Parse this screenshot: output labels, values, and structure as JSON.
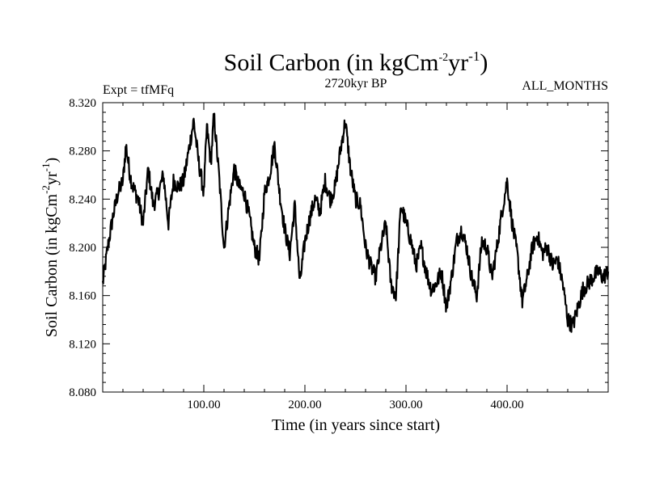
{
  "chart_data": {
    "type": "line",
    "title": {
      "prefix": "Soil Carbon (in kgCm",
      "sup1": "-2",
      "mid": "yr",
      "sup2": "-1",
      "suffix": ")"
    },
    "subtitle": "2720kyr BP",
    "left_label": "Expt = tfMFq",
    "right_label": "ALL_MONTHS",
    "xlabel": "Time (in years since start)",
    "ylabel": {
      "prefix": "Soil Carbon (in kgCm",
      "sup1": "-2",
      "mid": "yr",
      "sup2": "-1",
      "suffix": ")"
    },
    "xlim": [
      0,
      500
    ],
    "ylim": [
      8.08,
      8.32
    ],
    "xticks": [
      100,
      200,
      300,
      400
    ],
    "xtick_labels": [
      "100.00",
      "200.00",
      "300.00",
      "400.00"
    ],
    "yticks": [
      8.08,
      8.12,
      8.16,
      8.2,
      8.24,
      8.28,
      8.32
    ],
    "ytick_labels": [
      "8.080",
      "8.120",
      "8.160",
      "8.200",
      "8.240",
      "8.280",
      "8.320"
    ],
    "x_minor_step": 20,
    "y_minor_step": 0.008,
    "series": [
      {
        "name": "Soil Carbon",
        "color": "#000000",
        "x": [
          0,
          5,
          10,
          15,
          20,
          23,
          27,
          30,
          35,
          40,
          45,
          50,
          55,
          60,
          65,
          70,
          75,
          80,
          85,
          90,
          95,
          100,
          103,
          107,
          110,
          115,
          120,
          125,
          130,
          135,
          140,
          145,
          150,
          155,
          160,
          165,
          170,
          175,
          180,
          185,
          190,
          195,
          200,
          205,
          210,
          215,
          220,
          225,
          230,
          235,
          240,
          245,
          250,
          255,
          260,
          265,
          270,
          275,
          280,
          285,
          290,
          295,
          300,
          305,
          310,
          315,
          320,
          325,
          330,
          335,
          340,
          345,
          350,
          355,
          360,
          365,
          370,
          375,
          380,
          385,
          390,
          395,
          400,
          405,
          410,
          415,
          420,
          425,
          430,
          435,
          440,
          445,
          450,
          455,
          460,
          465,
          470,
          475,
          480,
          485,
          490,
          495,
          500
        ],
        "y": [
          8.17,
          8.2,
          8.225,
          8.245,
          8.255,
          8.285,
          8.26,
          8.25,
          8.24,
          8.22,
          8.265,
          8.235,
          8.245,
          8.26,
          8.22,
          8.255,
          8.25,
          8.255,
          8.28,
          8.305,
          8.27,
          8.245,
          8.3,
          8.27,
          8.31,
          8.26,
          8.2,
          8.235,
          8.265,
          8.25,
          8.245,
          8.225,
          8.2,
          8.19,
          8.245,
          8.26,
          8.285,
          8.245,
          8.215,
          8.195,
          8.235,
          8.17,
          8.205,
          8.225,
          8.24,
          8.23,
          8.255,
          8.24,
          8.25,
          8.28,
          8.305,
          8.265,
          8.24,
          8.235,
          8.2,
          8.185,
          8.175,
          8.2,
          8.22,
          8.17,
          8.16,
          8.235,
          8.22,
          8.205,
          8.185,
          8.2,
          8.18,
          8.165,
          8.17,
          8.18,
          8.15,
          8.175,
          8.205,
          8.215,
          8.2,
          8.175,
          8.16,
          8.205,
          8.2,
          8.175,
          8.2,
          8.23,
          8.255,
          8.22,
          8.195,
          8.155,
          8.175,
          8.2,
          8.21,
          8.195,
          8.2,
          8.185,
          8.19,
          8.17,
          8.14,
          8.135,
          8.15,
          8.165,
          8.17,
          8.175,
          8.18,
          8.175,
          8.18
        ]
      }
    ]
  }
}
